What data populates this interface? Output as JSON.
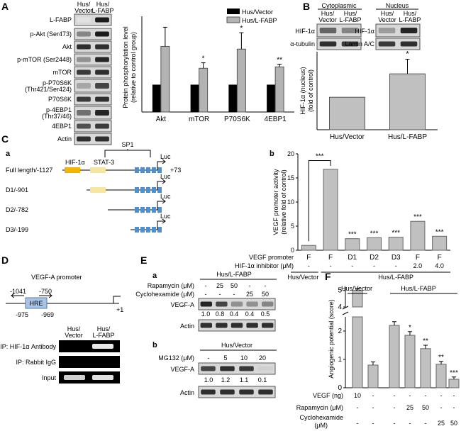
{
  "panels": {
    "A": "A",
    "B": "B",
    "C": "C",
    "D": "D",
    "E": "E",
    "F": "F"
  },
  "panelA": {
    "lane_headers": [
      "Hus/ Vector",
      "Hus/ L-FABP"
    ],
    "blot_labels": [
      "L-FABP",
      "p-Akt (Ser473)",
      "Akt",
      "p-mTOR (Ser2448)",
      "mTOR",
      "p-P70S6K (Thr421/Ser424)",
      "P70S6K",
      "p-4EBP1 (Thr37/46)",
      "4EBP1",
      "Actin"
    ],
    "chart_data": {
      "type": "bar",
      "categories": [
        "Akt",
        "mTOR",
        "P70S6K",
        "4EBP1"
      ],
      "series": [
        {
          "name": "Hus/Vector",
          "values": [
            1,
            1,
            1,
            1
          ],
          "color": "#000000"
        },
        {
          "name": "Hus/L-FABP",
          "values": [
            2.4,
            1.6,
            2.3,
            1.65
          ],
          "errors": [
            0.7,
            0.2,
            0.6,
            0.1
          ],
          "color": "#b3b3b3"
        }
      ],
      "significance": [
        "",
        "*",
        "*",
        "**"
      ],
      "ylabel": "Protein phosphorylation level (relative to control group)",
      "legend_position": "top-right"
    }
  },
  "panelB": {
    "section_labels": [
      "Cytoplasmic",
      "Nucleus"
    ],
    "lane_headers": [
      "Hus/ Vector",
      "Hus/ L-FABP",
      "Hus/ Vector",
      "Hus/ L-FABP"
    ],
    "blot_labels": [
      "HIF-1α",
      "α-tubulin",
      "HIF-1α",
      "Lamin A/C"
    ],
    "chart_data": {
      "type": "bar",
      "categories": [
        "Hus/Vector",
        "Hus/L-FABP"
      ],
      "values": [
        1,
        1.72
      ],
      "errors": [
        0,
        0.45
      ],
      "significance": [
        "",
        "*"
      ],
      "ylabel": "HIF-1α (nucleus) (fold of control)",
      "color": "#c0c0c0"
    }
  },
  "panelCa": {
    "sub": "a",
    "constructs": [
      "Full length/-1127",
      "D1/-901",
      "D2/-782",
      "D3/-199"
    ],
    "elements": [
      "HIF-1α",
      "STAT-3",
      "SP1"
    ],
    "luc": "Luc",
    "end": "+73",
    "colors": {
      "hif": "#f2b400",
      "stat": "#f7e6a0",
      "sp1": "#4f90cc"
    }
  },
  "panelCb": {
    "sub": "b",
    "chart_data": {
      "type": "bar",
      "categories": [
        "F",
        "F",
        "D1",
        "D2",
        "D3",
        "F",
        "F"
      ],
      "values": [
        1,
        16.8,
        2.4,
        2.6,
        2.7,
        6.0,
        2.9
      ],
      "significance": [
        "",
        "",
        "***",
        "***",
        "***",
        "***",
        "***"
      ],
      "comparison": "***",
      "ylabel": "VEGF promoter activity (relative fold of control)",
      "yticks": [
        0,
        5,
        10,
        15,
        20
      ],
      "ylim": [
        0,
        20
      ],
      "color": "#c0c0c0"
    },
    "row_labels": [
      "VEGF promoter",
      "HIF-1α inhibitor (μM)"
    ],
    "inhibitor": [
      "-",
      "-",
      "-",
      "-",
      "-",
      "2.0",
      "4.0"
    ],
    "groups": [
      "Hus/Vector",
      "Hus/L-FABP"
    ]
  },
  "panelD": {
    "title": "VEGF-A promoter",
    "positions": [
      "-1041",
      "-750",
      "-975",
      "-969",
      "+1"
    ],
    "hre": "HRE",
    "lane_headers": [
      "Hus/ Vector",
      "Hus/ L-FABP"
    ],
    "rows": [
      "IP: HIF-1α Antibody",
      "IP: Rabbit IgG",
      "Input"
    ]
  },
  "panelEa": {
    "sub": "a",
    "group": "Hus/L-FABP",
    "treat_labels": [
      "Rapamycin (μM)",
      "Cyclohexamide (μM)"
    ],
    "rapamycin": [
      "-",
      "25",
      "50",
      "-",
      "-"
    ],
    "cyclohexamide": [
      "-",
      "-",
      "-",
      "25",
      "50"
    ],
    "blot_labels": [
      "VEGF-A",
      "Actin"
    ],
    "quant": [
      "1.0",
      "0.8",
      "0.4",
      "0.4",
      "0.5"
    ]
  },
  "panelEb": {
    "sub": "b",
    "group": "Hus/Vector",
    "treat_label": "MG132 (μM)",
    "mg132": [
      "-",
      "5",
      "10",
      "20"
    ],
    "blot_labels": [
      "VEGF-A",
      "Actin"
    ],
    "quant": [
      "1.0",
      "1.2",
      "1.1",
      "0.1"
    ]
  },
  "panelF": {
    "groups": [
      "Hus/Vector",
      "Hus/L-FABP"
    ],
    "chart_data": {
      "type": "bar",
      "values": [
        5.0,
        0.8,
        2.2,
        1.85,
        1.38,
        0.83,
        0.3
      ],
      "errors": [
        0.05,
        0.06,
        0.08,
        0.08,
        0.07,
        0.05,
        0.03
      ],
      "significance": [
        "",
        "",
        "",
        "*",
        "**",
        "**",
        "***"
      ],
      "ylabel": "Angiogenic potential (score)",
      "yticks": [
        "0",
        "1",
        "2",
        "4",
        "5"
      ],
      "broken_axis": true,
      "color": "#c0c0c0"
    },
    "row_labels": [
      "VEGF (ng)",
      "Rapamycin (μM)",
      "Cyclohexamide (μM)"
    ],
    "vegf": [
      "10",
      "-",
      "-",
      "-",
      "-",
      "-",
      "-"
    ],
    "rapamycin": [
      "-",
      "-",
      "-",
      "25",
      "50",
      "-",
      "-"
    ],
    "cyclohexamide": [
      "-",
      "-",
      "-",
      "-",
      "-",
      "25",
      "50"
    ]
  }
}
